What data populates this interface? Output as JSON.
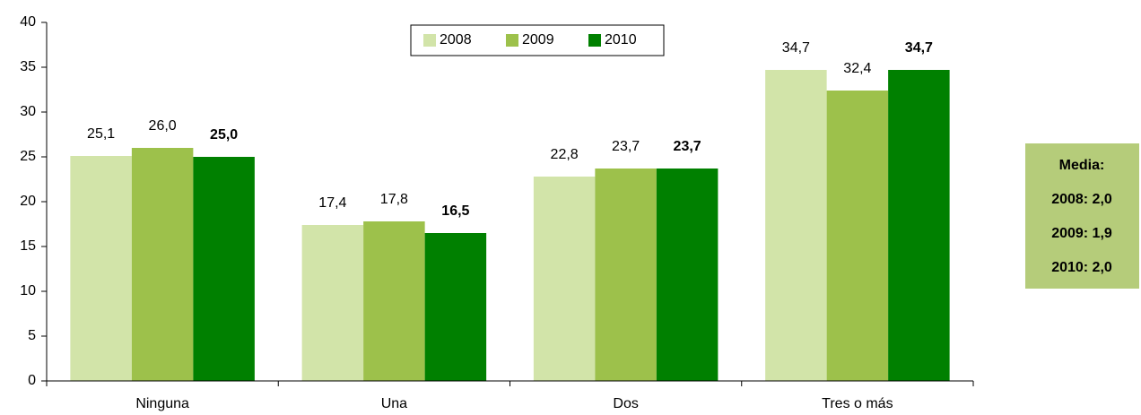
{
  "chart_data": {
    "type": "bar",
    "categories": [
      "Ninguna",
      "Una",
      "Dos",
      "Tres o más"
    ],
    "series": [
      {
        "name": "2008",
        "color": "#d2e4a9",
        "values": [
          25.1,
          17.4,
          22.8,
          34.7
        ],
        "value_labels": [
          "25,1",
          "17,4",
          "22,8",
          "34,7"
        ],
        "label_bold": false
      },
      {
        "name": "2009",
        "color": "#9dc14b",
        "values": [
          26.0,
          17.8,
          23.7,
          32.4
        ],
        "value_labels": [
          "26,0",
          "17,8",
          "23,7",
          "32,4"
        ],
        "label_bold": false
      },
      {
        "name": "2010",
        "color": "#008000",
        "values": [
          25.0,
          16.5,
          23.7,
          34.7
        ],
        "value_labels": [
          "25,0",
          "16,5",
          "23,7",
          "34,7"
        ],
        "label_bold": true
      }
    ],
    "ylim": [
      0,
      40
    ],
    "yticks": [
      0,
      5,
      10,
      15,
      20,
      25,
      30,
      35,
      40
    ],
    "grid": false,
    "legend": "top",
    "annotations": [
      "Media:",
      "2008: 2,0",
      "2009: 1,9",
      "2010: 2,0"
    ]
  }
}
